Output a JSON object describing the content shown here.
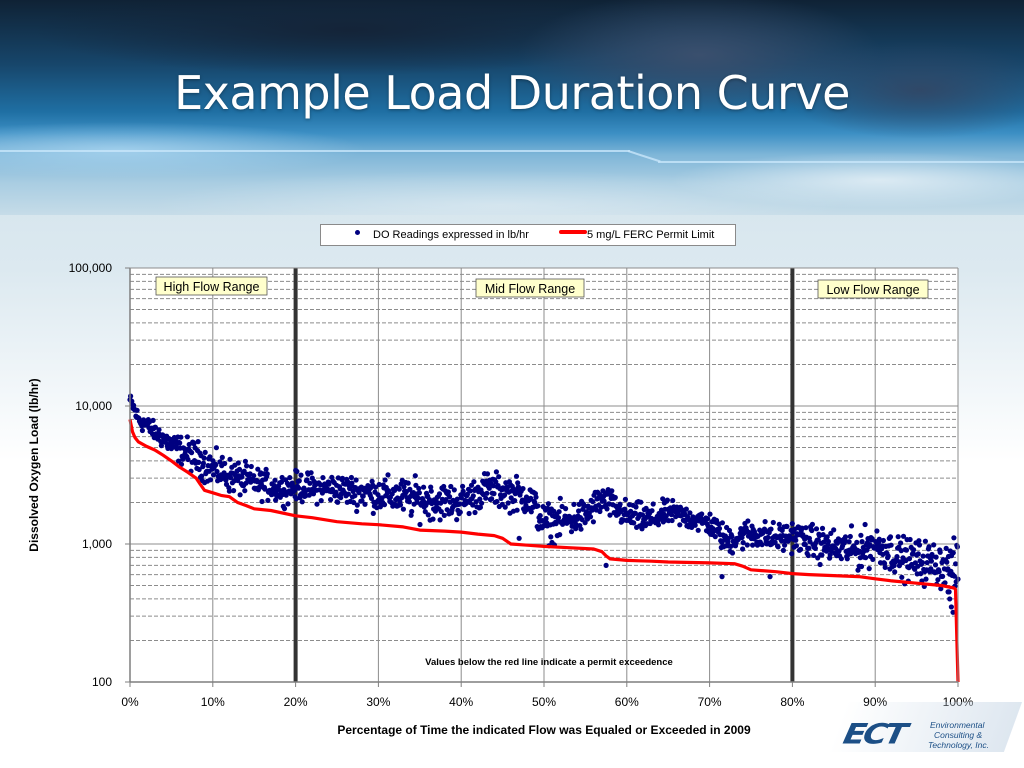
{
  "slide": {
    "title": "Example Load Duration Curve",
    "note": "Values below the red line indicate a permit exceedence",
    "logo": {
      "mark": "ECT",
      "lines": [
        "Environmental",
        "Consulting &",
        "Technology, Inc."
      ]
    }
  },
  "colors": {
    "points": "#000080",
    "limit_line": "#ff0000",
    "range_divider": "#333333",
    "range_label_bg": "#ffffcc"
  },
  "chart_data": {
    "type": "scatter",
    "title": "",
    "xlabel": "Percentage of Time the indicated Flow was Equaled or Exceeded in 2009",
    "ylabel": "Dissolved Oxygen Load (lb/hr)",
    "x_axis": {
      "min": 0,
      "max": 100,
      "ticks": [
        0,
        10,
        20,
        30,
        40,
        50,
        60,
        70,
        80,
        90,
        100
      ],
      "tick_labels": [
        "0%",
        "10%",
        "20%",
        "30%",
        "40%",
        "50%",
        "60%",
        "70%",
        "80%",
        "90%",
        "100%"
      ]
    },
    "y_axis": {
      "scale": "log",
      "min": 100,
      "max": 100000,
      "ticks": [
        100,
        1000,
        10000,
        100000
      ],
      "tick_labels": [
        "100",
        "1,000",
        "10,000",
        "100,000"
      ]
    },
    "grid": {
      "vertical_major": true,
      "horizontal_minor_dashed": true
    },
    "legend": {
      "position": "top",
      "entries": [
        {
          "label": "DO Readings expressed in lb/hr",
          "marker": "dot"
        },
        {
          "label": "5 mg/L FERC Permit Limit",
          "marker": "line"
        }
      ]
    },
    "flow_ranges": [
      {
        "label": "High Flow Range",
        "from": 0,
        "to": 20
      },
      {
        "label": "Mid Flow Range",
        "from": 20,
        "to": 80
      },
      {
        "label": "Low Flow Range",
        "from": 80,
        "to": 100
      }
    ],
    "range_dividers": [
      20,
      80
    ],
    "series": [
      {
        "name": "5 mg/L FERC Permit Limit",
        "type": "line",
        "x": [
          0,
          0.3,
          0.6,
          1,
          2,
          3,
          4,
          5,
          6,
          7,
          8,
          8.5,
          9,
          10,
          11,
          12,
          13,
          14,
          15,
          17,
          20,
          22,
          25,
          28,
          30,
          33,
          35,
          38,
          40,
          42,
          44,
          45,
          46,
          48,
          50,
          53,
          56,
          57,
          57.5,
          58,
          60,
          63,
          65,
          70,
          73,
          74,
          75,
          78,
          80,
          82,
          85,
          88,
          90,
          92,
          95,
          98,
          99.5,
          99.7,
          100
        ],
        "y": [
          8000,
          6500,
          5900,
          5500,
          5100,
          4800,
          4400,
          4000,
          3600,
          3300,
          3000,
          2700,
          2450,
          2350,
          2250,
          2200,
          2000,
          1900,
          1800,
          1750,
          1600,
          1550,
          1450,
          1400,
          1380,
          1330,
          1260,
          1240,
          1220,
          1180,
          1150,
          1100,
          1000,
          980,
          960,
          940,
          920,
          880,
          820,
          780,
          760,
          750,
          740,
          730,
          720,
          690,
          650,
          630,
          610,
          600,
          590,
          580,
          560,
          540,
          520,
          500,
          480,
          470,
          100
        ]
      },
      {
        "name": "DO Readings expressed in lb/hr",
        "type": "scatter",
        "envelope_estimate": {
          "x": [
            0,
            1,
            3,
            5,
            8,
            10,
            13,
            15,
            18,
            20,
            25,
            30,
            35,
            40,
            43,
            45,
            48,
            50,
            53,
            55,
            57,
            60,
            63,
            65,
            70,
            72,
            75,
            78,
            80,
            83,
            85,
            88,
            90,
            93,
            95,
            98,
            100
          ],
          "y_median": [
            11000,
            8000,
            6500,
            5200,
            4200,
            3500,
            3000,
            2800,
            2500,
            2600,
            2500,
            2300,
            2100,
            2000,
            2500,
            2400,
            2200,
            1400,
            1500,
            1600,
            2100,
            1600,
            1500,
            1700,
            1400,
            1050,
            1200,
            1100,
            1150,
            1000,
            950,
            900,
            1000,
            800,
            750,
            700,
            650
          ],
          "spread_factor": [
            1.1,
            1.15,
            1.15,
            1.2,
            1.3,
            1.3,
            1.3,
            1.25,
            1.25,
            1.25,
            1.25,
            1.3,
            1.35,
            1.3,
            1.3,
            1.3,
            1.3,
            1.35,
            1.3,
            1.3,
            1.25,
            1.25,
            1.25,
            1.2,
            1.2,
            1.25,
            1.25,
            1.25,
            1.25,
            1.3,
            1.3,
            1.35,
            1.35,
            1.35,
            1.4,
            1.4,
            1.5
          ]
        }
      }
    ]
  }
}
